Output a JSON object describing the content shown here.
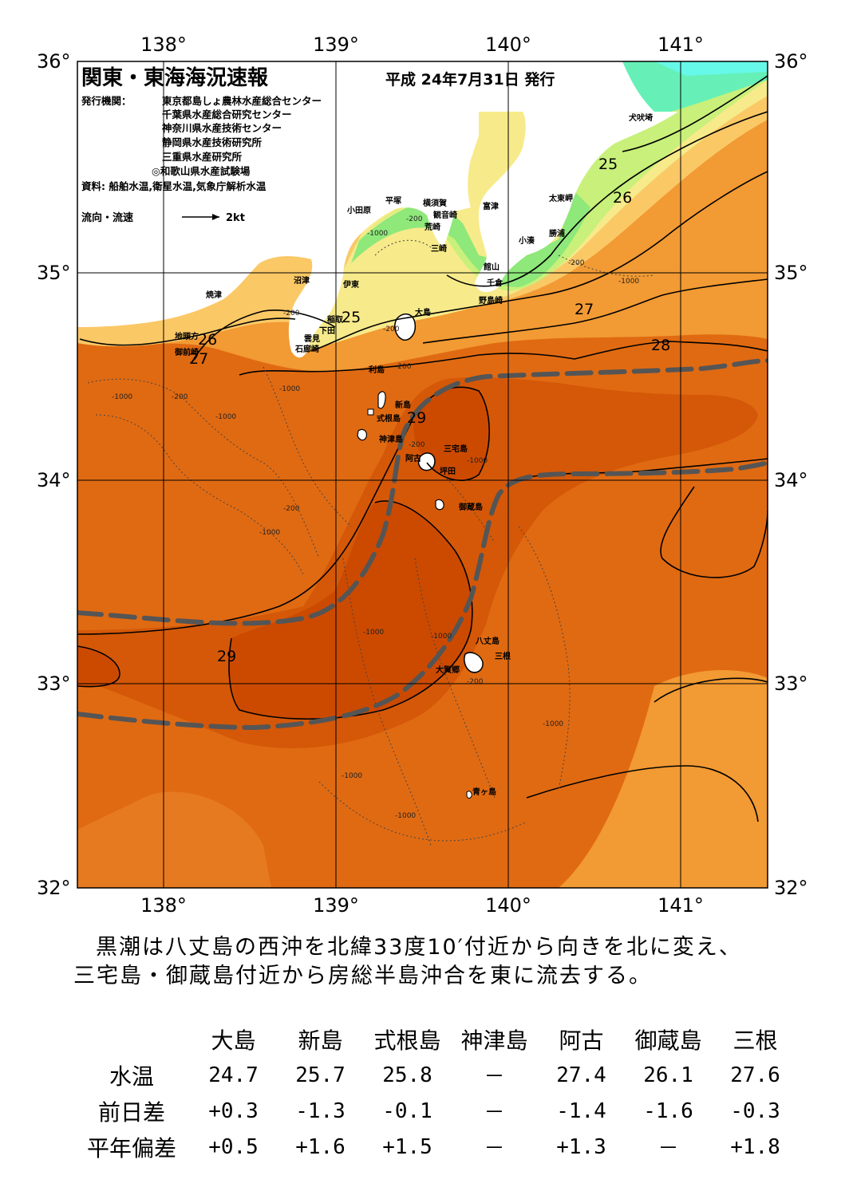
{
  "header": {
    "title": "関東・東海海況速報",
    "issue_date": "平成 24年7月31日 発行",
    "publisher_label": "発行機関：",
    "publishers": [
      "東京都島しょ農林水産総合センター",
      "千葉県水産総合研究センター",
      "神奈川県水産技術センター",
      "静岡県水産技術研究所",
      "三重県水産研究所",
      "◎和歌山県水産試験場"
    ],
    "sources": "資料: 船舶水温,衛星水温,気象庁解析水温",
    "current_legend_label": "流向・流速",
    "current_legend_scale": "2kt"
  },
  "axes": {
    "lon_labels": [
      "138°",
      "139°",
      "140°",
      "141°"
    ],
    "lat_labels": [
      "36°",
      "35°",
      "34°",
      "33°",
      "32°"
    ]
  },
  "place_names": [
    "犬吠埼",
    "太東岬",
    "勝浦",
    "小湊",
    "富津",
    "横須賀",
    "観音崎",
    "平塚",
    "小田原",
    "荒崎",
    "三崎",
    "館山",
    "千倉",
    "野島崎",
    "大島",
    "沼津",
    "伊東",
    "稲取",
    "下田",
    "雲見",
    "石廊崎",
    "焼津",
    "地頭方",
    "御前崎",
    "利島",
    "新島",
    "式根島",
    "神津島",
    "三宅島",
    "阿古",
    "坪田",
    "御蔵島",
    "八丈島",
    "三根",
    "大賀郷",
    "青ヶ島"
  ],
  "isotherm_labels": [
    "25",
    "26",
    "27",
    "28",
    "29"
  ],
  "depth_labels": [
    "-200",
    "-1000"
  ],
  "summary_lines": [
    "黒潮は八丈島の西沖を北緯33度10′付近から向きを北に変え、",
    "三宅島・御蔵島付近から房総半島沖合を東に流去する。"
  ],
  "observations": {
    "stations": [
      "大島",
      "新島",
      "式根島",
      "神津島",
      "阿古",
      "御蔵島",
      "三根"
    ],
    "rows": [
      {
        "label": "水温",
        "values": [
          "24.7",
          "25.7",
          "25.8",
          "－",
          "27.4",
          "26.1",
          "27.6"
        ]
      },
      {
        "label": "前日差",
        "values": [
          "+0.3",
          "-1.3",
          "-0.1",
          "－",
          "-1.4",
          "-1.6",
          "-0.3"
        ]
      },
      {
        "label": "平年偏差",
        "values": [
          "+0.5",
          "+1.6",
          "+1.5",
          "－",
          "+1.3",
          "－",
          "+1.8"
        ]
      }
    ]
  },
  "colors": {
    "sst_29": "#cc4a00",
    "sst_28": "#e06a12",
    "sst_27": "#f29a33",
    "sst_26": "#fbc866",
    "sst_25": "#f7ea8a",
    "sst_23": "#c8f07a",
    "sst_22": "#8ee87a",
    "sst_20": "#66f0b8",
    "kuroshio_axis": "#555555",
    "land": "#ffffff"
  }
}
